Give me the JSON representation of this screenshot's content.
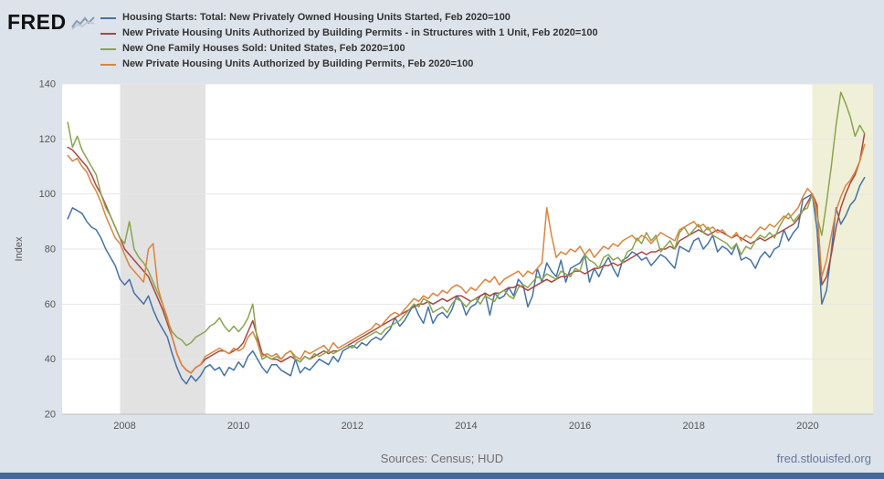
{
  "header": {
    "logo_text": "FRED"
  },
  "footer": {
    "sources": "Sources: Census; HUD",
    "site": "fred.stlouisfed.org"
  },
  "chart_data": {
    "type": "line",
    "ylabel": "Index",
    "ylim": [
      20,
      140
    ],
    "yticks": [
      20,
      40,
      60,
      80,
      100,
      120,
      140
    ],
    "xlim": [
      2006.9,
      2021.15
    ],
    "xticks": [
      2008,
      2010,
      2012,
      2014,
      2016,
      2018,
      2020
    ],
    "x_start_year": 2007.0,
    "x_step_months": 1,
    "grid": true,
    "legend_position": "top",
    "bands": [
      {
        "name": "recession-band",
        "from": 2007.92,
        "to": 2009.42,
        "color": "#e2e2e2"
      },
      {
        "name": "highlight-band",
        "from": 2020.08,
        "to": 2021.15,
        "color": "#f0f0d8"
      }
    ],
    "series": [
      {
        "name": "Housing Starts: Total: New Privately Owned Housing Units Started, Feb 2020=100",
        "color": "#4572a7",
        "values": [
          91,
          95,
          94,
          93,
          90,
          88,
          87,
          84,
          80,
          77,
          74,
          69,
          67,
          69,
          64,
          62,
          60,
          63,
          58,
          54,
          51,
          48,
          42,
          37,
          33,
          31,
          34,
          32,
          34,
          37,
          38,
          36,
          37,
          34,
          37,
          36,
          39,
          37,
          41,
          43,
          40,
          37,
          35,
          38,
          38,
          36,
          35,
          34,
          40,
          35,
          37,
          36,
          38,
          40,
          39,
          38,
          41,
          39,
          43,
          44,
          45,
          44,
          46,
          45,
          47,
          48,
          47,
          49,
          51,
          55,
          52,
          54,
          57,
          60,
          56,
          53,
          59,
          53,
          56,
          57,
          55,
          58,
          63,
          61,
          56,
          59,
          60,
          63,
          64,
          56,
          64,
          62,
          63,
          66,
          63,
          69,
          67,
          59,
          63,
          73,
          68,
          75,
          72,
          70,
          76,
          68,
          73,
          74,
          75,
          78,
          68,
          73,
          70,
          74,
          77,
          73,
          70,
          76,
          77,
          79,
          78,
          76,
          77,
          74,
          76,
          78,
          77,
          75,
          73,
          81,
          80,
          79,
          83,
          84,
          80,
          82,
          85,
          79,
          81,
          80,
          78,
          82,
          76,
          77,
          76,
          73,
          77,
          79,
          77,
          80,
          81,
          87,
          83,
          86,
          88,
          98,
          99,
          100,
          87,
          60,
          65,
          79,
          95,
          89,
          92,
          96,
          98,
          103,
          106
        ]
      },
      {
        "name": "New Private Housing Units Authorized by Building Permits - in Structures with 1 Unit, Feb 2020=100",
        "color": "#aa4643",
        "values": [
          117,
          116,
          114,
          112,
          110,
          107,
          103,
          100,
          96,
          92,
          88,
          84,
          80,
          78,
          76,
          74,
          72,
          70,
          66,
          62,
          58,
          53,
          48,
          42,
          38,
          36,
          35,
          37,
          38,
          40,
          41,
          42,
          43,
          43,
          42,
          43,
          44,
          46,
          50,
          54,
          48,
          42,
          41,
          40,
          40,
          39,
          40,
          41,
          40,
          39,
          41,
          40,
          41,
          42,
          43,
          42,
          43,
          43,
          44,
          45,
          46,
          47,
          48,
          49,
          50,
          51,
          52,
          53,
          54,
          55,
          56,
          57,
          58,
          59,
          60,
          60,
          61,
          60,
          61,
          62,
          61,
          62,
          63,
          63,
          62,
          61,
          62,
          63,
          64,
          63,
          64,
          64,
          65,
          66,
          66,
          67,
          66,
          65,
          66,
          67,
          68,
          69,
          68,
          69,
          70,
          70,
          71,
          72,
          72,
          71,
          72,
          73,
          73,
          74,
          74,
          75,
          74,
          75,
          76,
          77,
          78,
          79,
          78,
          79,
          79,
          80,
          80,
          81,
          80,
          83,
          84,
          85,
          86,
          87,
          86,
          85,
          86,
          87,
          86,
          85,
          84,
          85,
          84,
          83,
          82,
          83,
          84,
          83,
          84,
          85,
          86,
          87,
          88,
          89,
          91,
          94,
          97,
          100,
          96,
          67,
          70,
          78,
          88,
          95,
          100,
          104,
          107,
          112,
          122
        ]
      },
      {
        "name": "New One Family Houses Sold: United States, Feb 2020=100",
        "color": "#89a54e",
        "values": [
          126,
          117,
          121,
          116,
          113,
          110,
          107,
          100,
          95,
          92,
          88,
          84,
          82,
          90,
          80,
          77,
          75,
          72,
          68,
          64,
          60,
          54,
          50,
          48,
          47,
          45,
          46,
          48,
          49,
          50,
          52,
          53,
          55,
          52,
          50,
          52,
          50,
          52,
          55,
          60,
          46,
          40,
          41,
          40,
          41,
          40,
          42,
          43,
          40,
          39,
          41,
          40,
          42,
          41,
          42,
          43,
          42,
          43,
          44,
          45,
          44,
          46,
          47,
          48,
          49,
          50,
          49,
          51,
          52,
          53,
          54,
          56,
          58,
          60,
          59,
          62,
          61,
          57,
          58,
          59,
          57,
          60,
          62,
          61,
          59,
          61,
          62,
          60,
          63,
          62,
          61,
          64,
          65,
          63,
          62,
          66,
          67,
          66,
          68,
          70,
          69,
          71,
          70,
          69,
          72,
          71,
          70,
          73,
          72,
          78,
          76,
          75,
          73,
          77,
          78,
          76,
          77,
          75,
          79,
          80,
          84,
          82,
          86,
          83,
          85,
          79,
          81,
          83,
          80,
          86,
          88,
          85,
          87,
          89,
          86,
          88,
          85,
          84,
          83,
          82,
          80,
          82,
          78,
          81,
          80,
          83,
          85,
          84,
          86,
          84,
          88,
          91,
          93,
          90,
          92,
          94,
          95,
          100,
          92,
          85,
          97,
          110,
          125,
          137,
          133,
          128,
          121,
          125,
          122
        ]
      },
      {
        "name": "New Private Housing Units Authorized by Building Permits, Feb 2020=100",
        "color": "#db843d",
        "values": [
          114,
          112,
          113,
          110,
          108,
          104,
          101,
          97,
          92,
          88,
          84,
          82,
          78,
          74,
          72,
          70,
          68,
          80,
          82,
          66,
          60,
          55,
          48,
          42,
          38,
          36,
          35,
          37,
          38,
          41,
          42,
          43,
          44,
          43,
          42,
          44,
          43,
          44,
          48,
          50,
          46,
          41,
          42,
          41,
          42,
          40,
          42,
          43,
          41,
          40,
          43,
          42,
          43,
          44,
          45,
          43,
          46,
          44,
          45,
          46,
          47,
          48,
          49,
          50,
          51,
          53,
          52,
          54,
          56,
          57,
          56,
          58,
          60,
          62,
          61,
          63,
          62,
          64,
          63,
          65,
          64,
          66,
          67,
          66,
          64,
          66,
          65,
          67,
          69,
          68,
          70,
          67,
          69,
          70,
          71,
          72,
          70,
          72,
          71,
          73,
          75,
          95,
          85,
          77,
          79,
          78,
          80,
          79,
          81,
          78,
          80,
          77,
          79,
          81,
          80,
          82,
          81,
          83,
          84,
          85,
          83,
          85,
          84,
          82,
          84,
          86,
          85,
          84,
          83,
          87,
          88,
          89,
          90,
          88,
          89,
          87,
          88,
          86,
          87,
          85,
          84,
          86,
          83,
          85,
          84,
          86,
          88,
          87,
          89,
          88,
          90,
          92,
          91,
          93,
          95,
          99,
          102,
          100,
          94,
          70,
          76,
          85,
          94,
          99,
          103,
          105,
          108,
          112,
          118
        ]
      }
    ]
  }
}
